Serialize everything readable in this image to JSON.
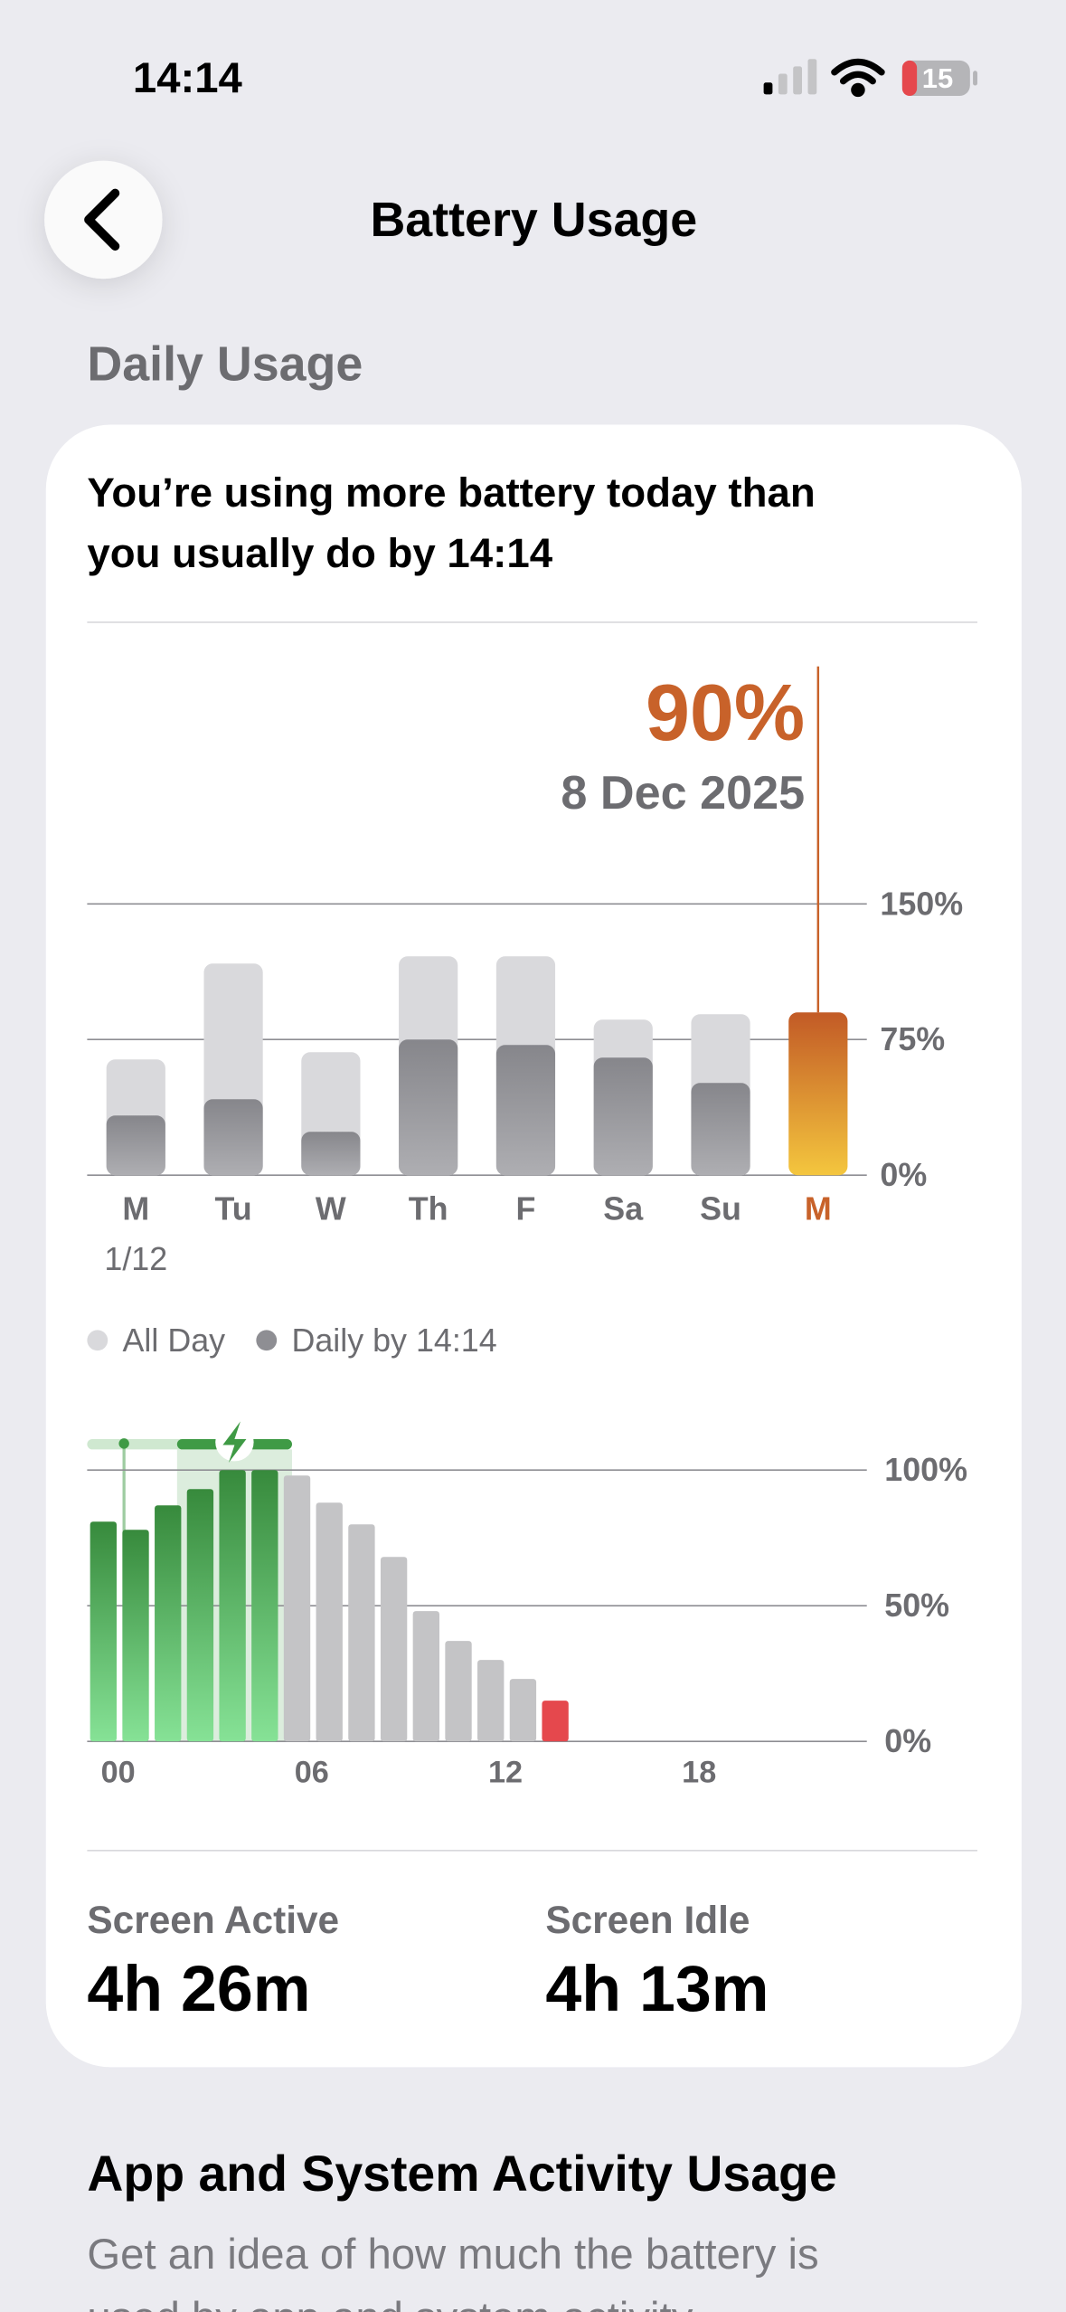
{
  "status_bar": {
    "time": "14:14",
    "battery": "15"
  },
  "header": {
    "title": "Battery Usage"
  },
  "section_title": "Daily Usage",
  "card": {
    "message_lines": [
      "You’re using more battery today than",
      "you usually do by 14:14"
    ],
    "daily_chart": {
      "type": "bar",
      "categories": [
        "M",
        "Tu",
        "W",
        "Th",
        "F",
        "Sa",
        "Su",
        "M"
      ],
      "first_date_label": "1/12",
      "selected_date": "8 Dec 2025",
      "series": [
        {
          "name": "All Day",
          "color": "#d9d9dc",
          "values": [
            64,
            117,
            68,
            121,
            121,
            86,
            89,
            null
          ]
        },
        {
          "name": "Daily by 14:14",
          "color": "#8e8e93",
          "values": [
            33,
            42,
            24,
            75,
            72,
            65,
            51,
            90
          ],
          "colors": [
            "#8e8e93",
            "#8e8e93",
            "#8e8e93",
            "#8e8e93",
            "#8e8e93",
            "#8e8e93",
            "#8e8e93",
            "#c8622a"
          ],
          "value_labels": [
            null,
            null,
            null,
            null,
            null,
            null,
            null,
            "90%"
          ]
        }
      ],
      "ylim": [
        0,
        150
      ],
      "yticks": [
        {
          "value": 0,
          "label": "0%"
        },
        {
          "value": 75,
          "label": "75%"
        },
        {
          "value": 150,
          "label": "150%"
        }
      ],
      "grid": true
    },
    "hourly_chart": {
      "type": "bar",
      "x": [
        0,
        1,
        2,
        3,
        4,
        5,
        6,
        7,
        8,
        9,
        10,
        11,
        12,
        13,
        14
      ],
      "values": [
        81,
        78,
        87,
        93,
        100,
        100,
        98,
        88,
        80,
        68,
        48,
        37,
        30,
        23,
        15
      ],
      "colors": [
        "#3f9a45",
        "#3f9a45",
        "#3f9a45",
        "#3f9a45",
        "#3f9a45",
        "#3f9a45",
        "#c4c4c6",
        "#c4c4c6",
        "#c4c4c6",
        "#c4c4c6",
        "#c4c4c6",
        "#c4c4c6",
        "#c4c4c6",
        "#c4c4c6",
        "#e5484d"
      ],
      "xlim": [
        0,
        24
      ],
      "xticks": [
        {
          "value": 0,
          "label": "00"
        },
        {
          "value": 6,
          "label": "06"
        },
        {
          "value": 12,
          "label": "12"
        },
        {
          "value": 18,
          "label": "18"
        }
      ],
      "ylim": [
        0,
        100
      ],
      "yticks": [
        {
          "value": 0,
          "label": "0%"
        },
        {
          "value": 50,
          "label": "50%"
        },
        {
          "value": 100,
          "label": "100%"
        }
      ],
      "grid": true
    },
    "stats": [
      {
        "label": "Screen Active",
        "value": "4h 26m"
      },
      {
        "label": "Screen Idle",
        "value": "4h 13m"
      }
    ]
  },
  "activity": {
    "title": "App and System Activity Usage",
    "text_lines": [
      "Get an idea of how much the battery is",
      "used by app and system activity"
    ]
  }
}
